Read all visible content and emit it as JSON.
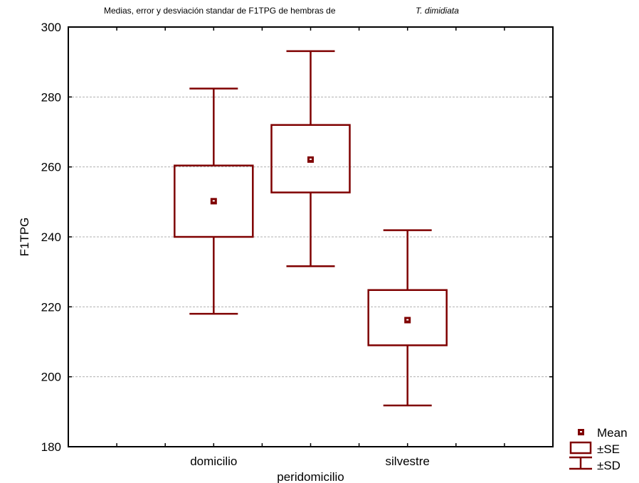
{
  "chart_data": {
    "type": "box",
    "title": "Medias, error y desviación standar de F1TPG de hembras de",
    "title_italic": "T. dimidiata",
    "xlabel": "",
    "ylabel": "F1TPG",
    "ylim": [
      180,
      300
    ],
    "yticks": [
      180,
      200,
      220,
      240,
      260,
      280,
      300
    ],
    "grid": true,
    "categories": [
      "domicilio",
      "peridomicilio",
      "silvestre"
    ],
    "series": [
      {
        "category": "domicilio",
        "mean": 250.2,
        "se_low": 240.0,
        "se_high": 260.4,
        "sd_low": 218.0,
        "sd_high": 282.4
      },
      {
        "category": "peridomicilio",
        "mean": 262.1,
        "se_low": 252.7,
        "se_high": 272.0,
        "sd_low": 231.6,
        "sd_high": 293.1
      },
      {
        "category": "silvestre",
        "mean": 216.2,
        "se_low": 209.0,
        "se_high": 224.8,
        "sd_low": 191.8,
        "sd_high": 241.9
      }
    ],
    "legend": {
      "placement": "bottom-right",
      "items": [
        "Mean",
        "±SE",
        "±SD"
      ]
    },
    "colors": {
      "series": "#7f0000",
      "grid": "#b0b0b0",
      "axis": "#000000"
    }
  }
}
